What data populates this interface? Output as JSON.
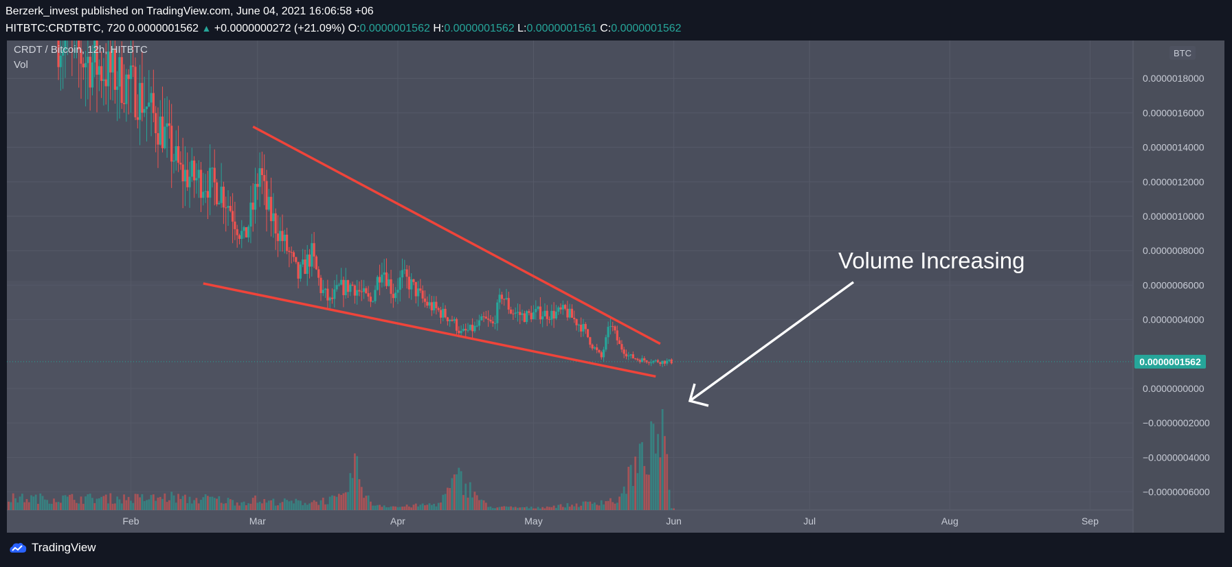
{
  "header": {
    "publisher_line": "Berzerk_invest published on TradingView.com, June 04, 2021 16:06:58 +06",
    "symbol_interval": "HITBTC:CRDTBTC, 720",
    "last_price": "0.0000001562",
    "change": "+0.0000000272 (+21.09%)",
    "o_label": "O:",
    "o_value": "0.0000001562",
    "h_label": "H:",
    "h_value": "0.0000001562",
    "l_label": "L:",
    "l_value": "0.0000001561",
    "c_label": "C:",
    "c_value": "0.0000001562"
  },
  "legend": {
    "pair": "CRDT / Bitcoin, 12h, HITBTC",
    "vol": "Vol"
  },
  "footer": {
    "brand": "TradingView"
  },
  "colors": {
    "background": "#131722",
    "pane": "#4e5260",
    "up": "#26a69a",
    "down": "#ef5350",
    "trendline": "#f0443a",
    "annotation": "#ffffff"
  },
  "chart_data": {
    "type": "candlestick",
    "currency": "BTC",
    "y_ticks": [
      "0.0000018000",
      "0.0000016000",
      "0.0000014000",
      "0.0000012000",
      "0.0000010000",
      "0.0000008000",
      "0.0000006000",
      "0.0000004000",
      "0.0000000000",
      "−0.0000002000",
      "−0.0000004000",
      "−0.0000006000"
    ],
    "y_tick_values": [
      1.8e-06,
      1.6e-06,
      1.4e-06,
      1.2e-06,
      1e-06,
      8e-07,
      6e-07,
      4e-07,
      0,
      -2e-07,
      -4e-07,
      -6e-07
    ],
    "ylim": [
      -7.05e-07,
      2.02e-06
    ],
    "x_ticks": [
      {
        "label": "Feb",
        "day": 31
      },
      {
        "label": "Mar",
        "day": 59
      },
      {
        "label": "Apr",
        "day": 90
      },
      {
        "label": "May",
        "day": 120
      },
      {
        "label": "Jun",
        "day": 151
      },
      {
        "label": "Jul",
        "day": 181
      },
      {
        "label": "Aug",
        "day": 212
      },
      {
        "label": "Sep",
        "day": 243
      }
    ],
    "xlim": [
      3.6,
      252.5
    ],
    "price_series": [
      [
        15,
        2.05e-06
      ],
      [
        20,
        1.93e-06
      ],
      [
        25,
        1.85e-06
      ],
      [
        30,
        1.78e-06
      ],
      [
        33,
        1.7e-06
      ],
      [
        36,
        1.58e-06
      ],
      [
        38,
        1.5e-06
      ],
      [
        40,
        1.38e-06
      ],
      [
        42,
        1.25e-06
      ],
      [
        45,
        1.22e-06
      ],
      [
        48,
        1.2e-06
      ],
      [
        51,
        1.15e-06
      ],
      [
        53,
        1.05e-06
      ],
      [
        56,
        8.6e-07
      ],
      [
        58,
        1.05e-06
      ],
      [
        59.5,
        1.28e-06
      ],
      [
        61,
        1.05e-06
      ],
      [
        63,
        9.5e-07
      ],
      [
        66,
        7.8e-07
      ],
      [
        68,
        6.5e-07
      ],
      [
        71,
        7.8e-07
      ],
      [
        73,
        5.8e-07
      ],
      [
        75,
        5e-07
      ],
      [
        77,
        5.8e-07
      ],
      [
        80,
        6e-07
      ],
      [
        82,
        5.5e-07
      ],
      [
        84,
        5e-07
      ],
      [
        86.5,
        7.2e-07
      ],
      [
        89,
        5.5e-07
      ],
      [
        91,
        6.5e-07
      ],
      [
        93,
        6e-07
      ],
      [
        96,
        5e-07
      ],
      [
        99,
        4.5e-07
      ],
      [
        102,
        4e-07
      ],
      [
        104,
        3.2e-07
      ],
      [
        107,
        3.5e-07
      ],
      [
        109,
        4e-07
      ],
      [
        111,
        3.7e-07
      ],
      [
        113,
        5.5e-07
      ],
      [
        115,
        4.5e-07
      ],
      [
        118,
        4.2e-07
      ],
      [
        121,
        4.4e-07
      ],
      [
        124,
        4.3e-07
      ],
      [
        127,
        4.5e-07
      ],
      [
        129,
        4e-07
      ],
      [
        131,
        3.5e-07
      ],
      [
        133,
        2.5e-07
      ],
      [
        135,
        1.8e-07
      ],
      [
        137,
        3.8e-07
      ],
      [
        139,
        2.5e-07
      ],
      [
        141,
        1.9e-07
      ],
      [
        143,
        1.7e-07
      ],
      [
        146,
        1.6e-07
      ],
      [
        148,
        1.57e-07
      ],
      [
        150,
        1.56e-07
      ]
    ],
    "volume_series": [
      [
        36,
        0.15
      ],
      [
        40,
        0.17
      ],
      [
        44,
        0.13
      ],
      [
        48,
        0.15
      ],
      [
        52,
        0.12
      ],
      [
        56,
        0.1
      ],
      [
        58,
        0.14
      ],
      [
        60,
        0.11
      ],
      [
        70,
        0.1
      ],
      [
        78,
        0.15
      ],
      [
        80.5,
        0.55
      ],
      [
        84,
        0.08
      ],
      [
        90,
        0.04
      ],
      [
        99,
        0.08
      ],
      [
        103.5,
        0.41
      ],
      [
        110,
        0.04
      ],
      [
        120,
        0.03
      ],
      [
        130,
        0.07
      ],
      [
        136,
        0.12
      ],
      [
        139,
        0.12
      ],
      [
        141,
        0.42
      ],
      [
        148.5,
        0.98
      ],
      [
        150.5,
        0.03
      ]
    ],
    "current_price_label": "0.0000001562",
    "current_price": 1.562e-07,
    "trendlines": [
      {
        "from": [
          58,
          1.52e-06
        ],
        "to": [
          148,
          2.6e-07
        ]
      },
      {
        "from": [
          47,
          6.1e-07
        ],
        "to": [
          147,
          7e-08
        ]
      }
    ],
    "annotation": {
      "text": "Volume Increasing"
    }
  }
}
